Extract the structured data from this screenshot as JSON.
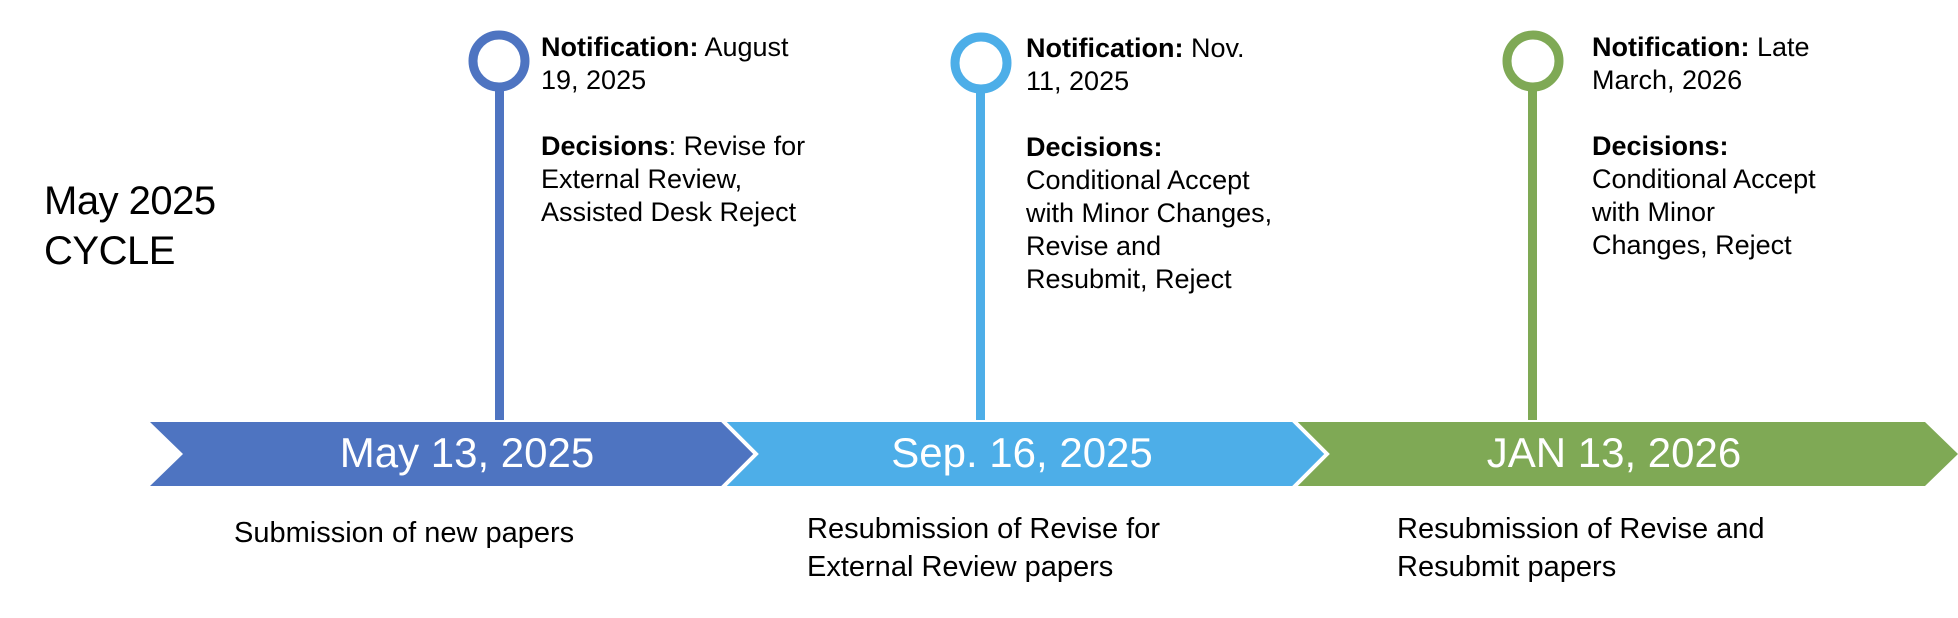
{
  "cycle_title": {
    "line1": "May 2025",
    "line2": "CYCLE"
  },
  "colors": {
    "stage1": "#4e74c1",
    "stage2": "#4daee8",
    "stage3": "#7fa955",
    "separator": "#ffffff",
    "arrow_text": "#ffffff"
  },
  "stages": [
    {
      "date": "May 13, 2025",
      "caption_lines": [
        "Submission of new papers"
      ],
      "notification_label": "Notification:",
      "notification_lines": [
        " August",
        "19, 2025"
      ],
      "decisions_label": "Decisions",
      "decisions_lines": [
        ": Revise for",
        "External Review,",
        "Assisted Desk Reject"
      ]
    },
    {
      "date": "Sep. 16, 2025",
      "caption_lines": [
        "Resubmission of Revise for",
        "External Review papers"
      ],
      "notification_label": "Notification:",
      "notification_lines": [
        " Nov.",
        "11, 2025"
      ],
      "decisions_label": "Decisions:",
      "decisions_lines": [
        "",
        "Conditional Accept",
        "with Minor Changes,",
        "Revise and",
        "Resubmit, Reject"
      ]
    },
    {
      "date": "JAN 13, 2026",
      "caption_lines": [
        "Resubmission of Revise and",
        "Resubmit papers"
      ],
      "notification_label": "Notification:",
      "notification_lines": [
        " Late",
        "March, 2026"
      ],
      "decisions_label": "Decisions:",
      "decisions_lines": [
        "",
        "Conditional Accept",
        "with Minor",
        "Changes, Reject"
      ]
    }
  ]
}
